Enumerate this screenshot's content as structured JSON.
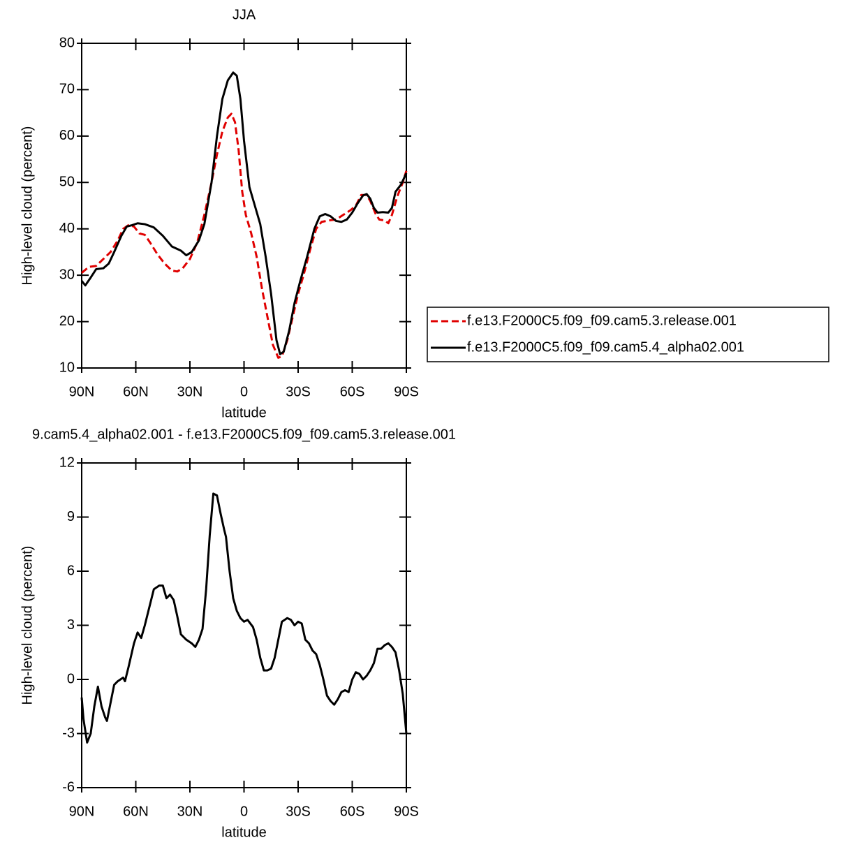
{
  "chart_data": [
    {
      "type": "line",
      "title": "JJA",
      "xlabel": "latitude",
      "ylabel": "High-level cloud (percent)",
      "xlim": [
        90,
        -90
      ],
      "xticks": [
        {
          "value": 90,
          "label": "90N"
        },
        {
          "value": 60,
          "label": "60N"
        },
        {
          "value": 30,
          "label": "30N"
        },
        0,
        {
          "value": -30,
          "label": "30S"
        },
        {
          "value": -60,
          "label": "60S"
        },
        {
          "value": -90,
          "label": "90S"
        }
      ],
      "ylim": [
        10,
        80
      ],
      "yticks": [
        10,
        20,
        30,
        40,
        50,
        60,
        70,
        80
      ],
      "legend": "outside-right",
      "series": [
        {
          "name": "f.e13.F2000C5.f09_f09.cam5.3.release.001",
          "color": "#e00000",
          "line_style": "dashed",
          "x": [
            90,
            86,
            82,
            78,
            74,
            70,
            67,
            64,
            61,
            58,
            55,
            52,
            48,
            44,
            40,
            37,
            34,
            30,
            26,
            22,
            18,
            15,
            12,
            9,
            7,
            5,
            3,
            1,
            -1,
            -4,
            -7,
            -10,
            -13,
            -16,
            -19,
            -21,
            -24,
            -27,
            -30,
            -33,
            -37,
            -40,
            -43,
            -47,
            -51,
            -55,
            -59,
            -62,
            -65,
            -68,
            -70,
            -73,
            -75,
            -78,
            -80,
            -82,
            -85,
            -88,
            -90
          ],
          "values": [
            30.5,
            31.8,
            32,
            33.5,
            35,
            37.5,
            40,
            40.8,
            40.5,
            39,
            38.7,
            37,
            34.5,
            32.5,
            31,
            30.8,
            31.5,
            33.5,
            37,
            43,
            50,
            56,
            61,
            64,
            64.8,
            63,
            57,
            48,
            43,
            39,
            34,
            27,
            21,
            15,
            12.2,
            12.5,
            16,
            21,
            26,
            30,
            36,
            40,
            41.5,
            41.8,
            42,
            43,
            44,
            45,
            47.3,
            47.3,
            46,
            43.2,
            42,
            41.8,
            41.2,
            43,
            47,
            50,
            52.5
          ]
        },
        {
          "name": "f.e13.F2000C5.f09_f09.cam5.4_alpha02.001",
          "color": "#000000",
          "line_style": "solid",
          "x": [
            90,
            88,
            85,
            82,
            78,
            75,
            72,
            68,
            65,
            62,
            59,
            55,
            50,
            45,
            40,
            35,
            32,
            29,
            25,
            22,
            18,
            15,
            12,
            9,
            6,
            4,
            2,
            0,
            -3,
            -6,
            -9,
            -12,
            -15,
            -18,
            -20,
            -22,
            -25,
            -28,
            -31,
            -35,
            -39,
            -42,
            -45,
            -48,
            -51,
            -54,
            -57,
            -60,
            -63,
            -66,
            -68,
            -70,
            -72,
            -74,
            -77,
            -80,
            -82,
            -84,
            -87,
            -90
          ],
          "values": [
            28.8,
            27.8,
            29.5,
            31.3,
            31.5,
            32.5,
            35,
            38.5,
            40.5,
            40.8,
            41.2,
            41,
            40.3,
            38.5,
            36.2,
            35.3,
            34.3,
            35,
            37.5,
            41,
            50,
            60,
            68,
            72,
            73.7,
            73,
            68,
            59,
            49,
            45,
            41,
            34,
            26,
            16,
            13,
            13.5,
            18,
            24,
            28.5,
            34,
            40,
            42.7,
            43.2,
            42.7,
            41.7,
            41.5,
            42,
            43.5,
            45.5,
            47.2,
            47.5,
            46.5,
            44.5,
            43.5,
            43.6,
            43.5,
            44.5,
            48,
            49.5,
            52
          ]
        }
      ]
    },
    {
      "type": "line",
      "title": "9.cam5.4_alpha02.001 - f.e13.F2000C5.f09_f09.cam5.3.release.001",
      "xlabel": "latitude",
      "ylabel": "High-level cloud (percent)",
      "xlim": [
        90,
        -90
      ],
      "xticks": [
        {
          "value": 90,
          "label": "90N"
        },
        {
          "value": 60,
          "label": "60N"
        },
        {
          "value": 30,
          "label": "30N"
        },
        0,
        {
          "value": -30,
          "label": "30S"
        },
        {
          "value": -60,
          "label": "60S"
        },
        {
          "value": -90,
          "label": "90S"
        }
      ],
      "ylim": [
        -6,
        12
      ],
      "yticks": [
        -6,
        -3,
        0,
        3,
        6,
        9,
        12
      ],
      "series": [
        {
          "color": "#000000",
          "line_style": "solid",
          "x": [
            90,
            89,
            87,
            85,
            83,
            81,
            79,
            77,
            76,
            74,
            72,
            70,
            67,
            66,
            64,
            61,
            59,
            57,
            55,
            52,
            50,
            47,
            45,
            43,
            41,
            39,
            37,
            35,
            32,
            29,
            27,
            25,
            23,
            21,
            19,
            17,
            15,
            13,
            11,
            10,
            8,
            6,
            4,
            2,
            0,
            -2,
            -5,
            -7,
            -9,
            -11,
            -13,
            -15,
            -17,
            -19,
            -21,
            -24,
            -26,
            -28,
            -30,
            -32,
            -34,
            -36,
            -38,
            -40,
            -42,
            -44,
            -46,
            -48,
            -50,
            -52,
            -54,
            -56,
            -58,
            -60,
            -62,
            -64,
            -66,
            -68,
            -70,
            -72,
            -74,
            -76,
            -78,
            -80,
            -82,
            -84,
            -86,
            -88,
            -90
          ],
          "values": [
            -1,
            -2.2,
            -3.5,
            -3,
            -1.5,
            -0.4,
            -1.5,
            -2.1,
            -2.3,
            -1.3,
            -0.3,
            -0.1,
            0.1,
            -0.1,
            0.7,
            2,
            2.6,
            2.3,
            3,
            4.2,
            5,
            5.2,
            5.2,
            4.5,
            4.7,
            4.4,
            3.5,
            2.5,
            2.2,
            2,
            1.8,
            2.2,
            2.8,
            5,
            8,
            10.3,
            10.2,
            9.2,
            8.3,
            7.9,
            6,
            4.5,
            3.8,
            3.4,
            3.2,
            3.3,
            2.9,
            2.2,
            1.2,
            0.5,
            0.5,
            0.6,
            1.2,
            2.2,
            3.2,
            3.4,
            3.3,
            3,
            3.2,
            3.1,
            2.2,
            2,
            1.6,
            1.4,
            0.8,
            0,
            -0.9,
            -1.2,
            -1.4,
            -1.1,
            -0.7,
            -0.6,
            -0.7,
            0,
            0.4,
            0.3,
            0,
            0.2,
            0.5,
            0.9,
            1.7,
            1.7,
            1.9,
            2,
            1.8,
            1.5,
            0.5,
            -0.8,
            -3
          ]
        }
      ]
    }
  ]
}
